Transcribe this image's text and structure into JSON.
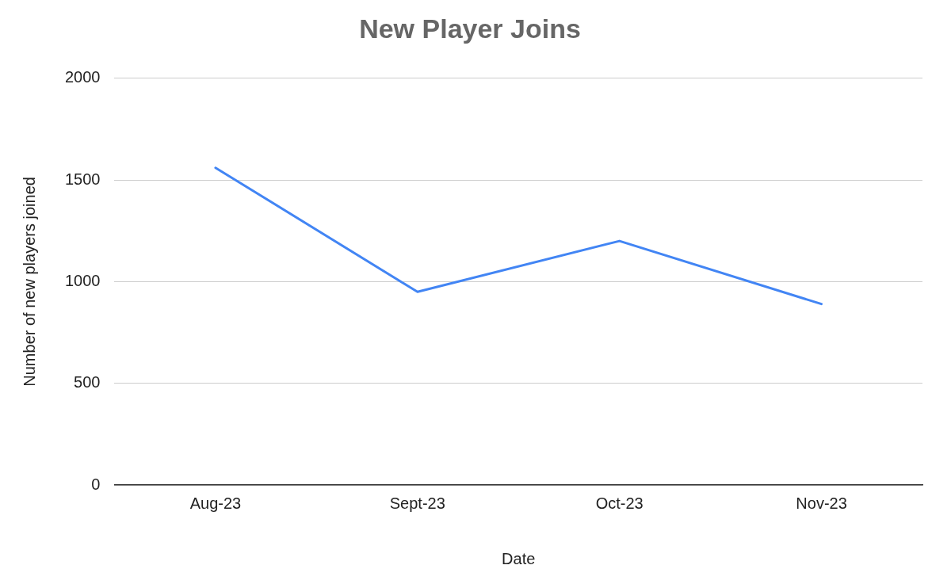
{
  "chart_data": {
    "type": "line",
    "title": "New Player Joins",
    "xlabel": "Date",
    "ylabel": "Number of new players joined",
    "categories": [
      "Aug-23",
      "Sept-23",
      "Oct-23",
      "Nov-23"
    ],
    "series": [
      {
        "color": "#4285f4",
        "values": [
          1560,
          950,
          1200,
          890
        ]
      }
    ],
    "ylim": [
      0,
      2000
    ],
    "yticks": [
      0,
      500,
      1000,
      1500,
      2000
    ],
    "grid": "y",
    "legend": false,
    "marker": "none",
    "line_style": "solid"
  }
}
